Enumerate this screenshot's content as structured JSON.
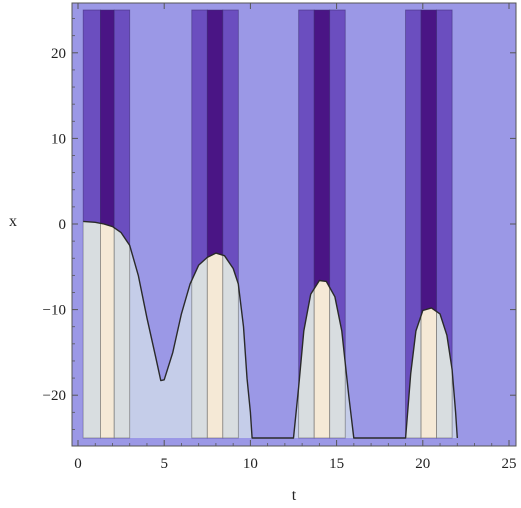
{
  "chart_data": {
    "type": "heatmap",
    "title": "",
    "xlabel": "t",
    "ylabel": "x",
    "xlim": [
      0,
      25
    ],
    "ylim": [
      -25,
      25
    ],
    "xticks": [
      0,
      5,
      10,
      15,
      20,
      25
    ],
    "yticks": [
      -20,
      -10,
      0,
      10,
      20
    ],
    "xtick_labels": [
      "0",
      "5",
      "10",
      "15",
      "20",
      "25"
    ],
    "ytick_labels": [
      "−20",
      "−10",
      "0",
      "10",
      "20"
    ],
    "bands_upper": [
      {
        "t0": 0.3,
        "t1": 1.3,
        "level": "mid"
      },
      {
        "t0": 1.3,
        "t1": 2.1,
        "level": "dark"
      },
      {
        "t0": 2.1,
        "t1": 3.0,
        "level": "mid"
      },
      {
        "t0": 6.6,
        "t1": 7.5,
        "level": "mid"
      },
      {
        "t0": 7.5,
        "t1": 8.4,
        "level": "dark"
      },
      {
        "t0": 8.4,
        "t1": 9.3,
        "level": "mid"
      },
      {
        "t0": 12.8,
        "t1": 13.7,
        "level": "mid"
      },
      {
        "t0": 13.7,
        "t1": 14.6,
        "level": "dark"
      },
      {
        "t0": 14.6,
        "t1": 15.5,
        "level": "mid"
      },
      {
        "t0": 19.0,
        "t1": 19.9,
        "level": "mid"
      },
      {
        "t0": 19.9,
        "t1": 20.8,
        "level": "dark"
      },
      {
        "t0": 20.8,
        "t1": 21.7,
        "level": "mid"
      }
    ],
    "bands_lower": [
      {
        "t0": 0.3,
        "t1": 1.3,
        "level": "grey"
      },
      {
        "t0": 1.3,
        "t1": 2.1,
        "level": "cream"
      },
      {
        "t0": 2.1,
        "t1": 3.0,
        "level": "grey"
      },
      {
        "t0": 6.6,
        "t1": 7.5,
        "level": "grey"
      },
      {
        "t0": 7.5,
        "t1": 8.4,
        "level": "cream"
      },
      {
        "t0": 8.4,
        "t1": 9.3,
        "level": "grey"
      },
      {
        "t0": 12.8,
        "t1": 13.7,
        "level": "grey"
      },
      {
        "t0": 13.7,
        "t1": 14.6,
        "level": "cream"
      },
      {
        "t0": 14.6,
        "t1": 15.5,
        "level": "grey"
      },
      {
        "t0": 19.0,
        "t1": 19.9,
        "level": "grey"
      },
      {
        "t0": 19.9,
        "t1": 20.8,
        "level": "cream"
      },
      {
        "t0": 20.8,
        "t1": 21.7,
        "level": "grey"
      }
    ],
    "boundary": [
      [
        0.3,
        0.3
      ],
      [
        1.0,
        0.2
      ],
      [
        1.5,
        0.0
      ],
      [
        2.0,
        -0.3
      ],
      [
        2.5,
        -1.0
      ],
      [
        3.0,
        -2.5
      ],
      [
        3.5,
        -6.0
      ],
      [
        4.0,
        -11.0
      ],
      [
        4.5,
        -15.5
      ],
      [
        4.8,
        -18.3
      ],
      [
        5.0,
        -18.2
      ],
      [
        5.5,
        -15.0
      ],
      [
        6.0,
        -10.5
      ],
      [
        6.5,
        -7.0
      ],
      [
        7.0,
        -4.8
      ],
      [
        7.5,
        -3.9
      ],
      [
        8.0,
        -3.4
      ],
      [
        8.5,
        -3.7
      ],
      [
        9.0,
        -5.2
      ],
      [
        9.3,
        -7.0
      ],
      [
        9.6,
        -12.0
      ],
      [
        9.8,
        -18.0
      ],
      [
        10.0,
        -22.0
      ],
      [
        10.1,
        -25.0
      ],
      [
        12.5,
        -25.0
      ],
      [
        12.8,
        -19.0
      ],
      [
        13.1,
        -12.5
      ],
      [
        13.5,
        -8.2
      ],
      [
        14.0,
        -6.6
      ],
      [
        14.4,
        -6.7
      ],
      [
        14.9,
        -8.5
      ],
      [
        15.3,
        -12.5
      ],
      [
        15.7,
        -20.0
      ],
      [
        16.0,
        -25.0
      ],
      [
        19.0,
        -25.0
      ],
      [
        19.3,
        -17.5
      ],
      [
        19.6,
        -12.5
      ],
      [
        20.0,
        -10.1
      ],
      [
        20.5,
        -9.8
      ],
      [
        21.0,
        -10.5
      ],
      [
        21.4,
        -13.0
      ],
      [
        21.7,
        -17.0
      ],
      [
        21.9,
        -22.0
      ],
      [
        22.0,
        -25.0
      ]
    ],
    "colors": {
      "background": "#9b98e6",
      "mid": "#6b4ebf",
      "dark": "#4a1585",
      "lower": "#c5cde9",
      "grey": "#d8dde0",
      "cream": "#f5e9d6",
      "boundary": "#2a2a2a",
      "frame": "#555555"
    }
  }
}
